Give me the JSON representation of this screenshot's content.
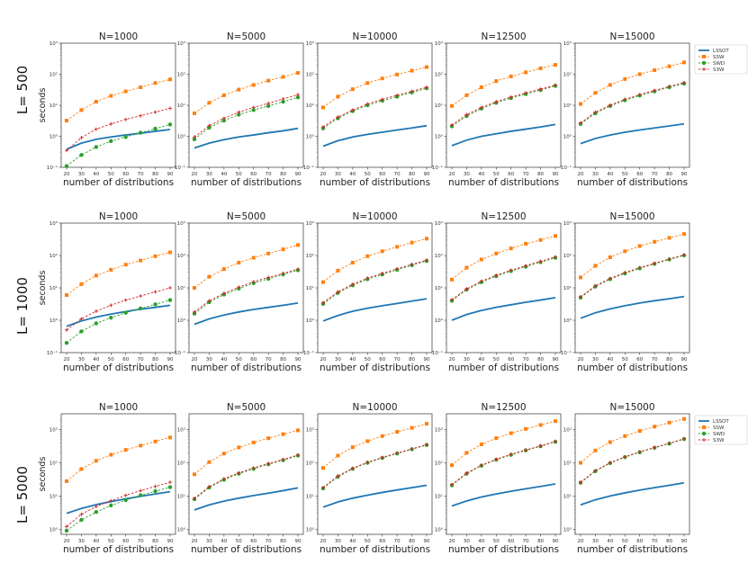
{
  "figure": {
    "ylabel": "seconds",
    "xlabel": "number of distributions",
    "x_tick_labels": [
      "20",
      "30",
      "40",
      "50",
      "60",
      "70",
      "80",
      "90"
    ]
  },
  "colors": {
    "LSSOT": "#1f77b4",
    "SSW": "#ff7f0e",
    "SWD": "#2ca02c",
    "S3W": "#d62728"
  },
  "chart_data": [
    {
      "type": "line",
      "row_label": "L= 500",
      "legend": [
        "LSSOT",
        "SSW",
        "SWD",
        "S3W"
      ],
      "ylim": [
        0.1,
        1000
      ],
      "ytick_labels": [
        "10⁻¹",
        "10⁰",
        "10¹",
        "10²",
        "10³"
      ],
      "x": [
        20,
        30,
        40,
        50,
        60,
        70,
        80,
        90
      ],
      "panels": [
        {
          "title": "N=1000",
          "series": [
            {
              "name": "LSSOT",
              "values": [
                0.38,
                0.6,
                0.8,
                0.95,
                1.1,
                1.25,
                1.45,
                1.65
              ]
            },
            {
              "name": "SSW",
              "values": [
                3.2,
                7,
                13,
                20,
                28,
                38,
                52,
                68
              ]
            },
            {
              "name": "SWD",
              "values": [
                0.11,
                0.25,
                0.45,
                0.7,
                0.95,
                1.3,
                1.75,
                2.4
              ]
            },
            {
              "name": "S3W",
              "values": [
                0.35,
                0.9,
                1.7,
                2.5,
                3.5,
                4.6,
                6,
                8
              ]
            }
          ]
        },
        {
          "title": "N=5000",
          "series": [
            {
              "name": "LSSOT",
              "values": [
                0.42,
                0.6,
                0.78,
                0.95,
                1.1,
                1.3,
                1.5,
                1.8
              ]
            },
            {
              "name": "SSW",
              "values": [
                5.5,
                12,
                21,
                32,
                45,
                62,
                82,
                110
              ]
            },
            {
              "name": "SWD",
              "values": [
                0.8,
                1.9,
                3.2,
                5,
                7,
                9.5,
                13,
                18
              ]
            },
            {
              "name": "S3W",
              "values": [
                0.95,
                2.2,
                3.8,
                6,
                8.5,
                11.5,
                16,
                22
              ]
            }
          ]
        },
        {
          "title": "N=10000",
          "series": [
            {
              "name": "LSSOT",
              "values": [
                0.48,
                0.72,
                0.95,
                1.15,
                1.35,
                1.6,
                1.85,
                2.2
              ]
            },
            {
              "name": "SSW",
              "values": [
                8.5,
                19,
                33,
                52,
                73,
                98,
                130,
                170
              ]
            },
            {
              "name": "SWD",
              "values": [
                1.8,
                3.8,
                6.5,
                10,
                14,
                19,
                26,
                35
              ]
            },
            {
              "name": "S3W",
              "values": [
                2,
                4.2,
                7,
                11,
                15.5,
                21,
                28,
                38
              ]
            }
          ]
        },
        {
          "title": "N=12500",
          "series": [
            {
              "name": "LSSOT",
              "values": [
                0.5,
                0.75,
                1.0,
                1.2,
                1.45,
                1.7,
                2.0,
                2.4
              ]
            },
            {
              "name": "SSW",
              "values": [
                9.5,
                21,
                38,
                60,
                85,
                115,
                155,
                200
              ]
            },
            {
              "name": "SWD",
              "values": [
                2.1,
                4.5,
                7.8,
                12,
                17,
                23,
                31,
                42
              ]
            },
            {
              "name": "S3W",
              "values": [
                2.3,
                5,
                8.5,
                13,
                18.5,
                25,
                33,
                45
              ]
            }
          ]
        },
        {
          "title": "N=15000",
          "series": [
            {
              "name": "LSSOT",
              "values": [
                0.58,
                0.85,
                1.1,
                1.35,
                1.6,
                1.85,
                2.15,
                2.5
              ]
            },
            {
              "name": "SSW",
              "values": [
                11,
                25,
                45,
                70,
                100,
                135,
                180,
                240
              ]
            },
            {
              "name": "SWD",
              "values": [
                2.5,
                5.5,
                9.5,
                14.5,
                20.5,
                28,
                38,
                50
              ]
            },
            {
              "name": "S3W",
              "values": [
                2.7,
                6,
                10,
                15.5,
                22,
                30,
                40,
                54
              ]
            }
          ]
        }
      ]
    },
    {
      "type": "line",
      "row_label": "L= 1000",
      "legend": [
        "LSSOT",
        "SSW",
        "SWD",
        "S3W"
      ],
      "ylim": [
        0.1,
        1000
      ],
      "ytick_labels": [
        "10⁻¹",
        "10⁰",
        "10¹",
        "10²",
        "10³"
      ],
      "x": [
        20,
        30,
        40,
        50,
        60,
        70,
        80,
        90
      ],
      "panels": [
        {
          "title": "N=1000",
          "series": [
            {
              "name": "LSSOT",
              "values": [
                0.65,
                0.95,
                1.25,
                1.55,
                1.85,
                2.2,
                2.5,
                2.9
              ]
            },
            {
              "name": "SSW",
              "values": [
                6,
                13,
                24,
                36,
                52,
                70,
                95,
                125
              ]
            },
            {
              "name": "SWD",
              "values": [
                0.2,
                0.45,
                0.8,
                1.2,
                1.7,
                2.3,
                3.1,
                4.2
              ]
            },
            {
              "name": "S3W",
              "values": [
                0.5,
                1.1,
                1.9,
                2.9,
                4.2,
                5.6,
                7.5,
                10
              ]
            }
          ]
        },
        {
          "title": "N=5000",
          "series": [
            {
              "name": "LSSOT",
              "values": [
                0.75,
                1.1,
                1.45,
                1.8,
                2.15,
                2.5,
                2.9,
                3.4
              ]
            },
            {
              "name": "SSW",
              "values": [
                10,
                22,
                38,
                60,
                85,
                115,
                155,
                210
              ]
            },
            {
              "name": "SWD",
              "values": [
                1.6,
                3.6,
                6.2,
                9.5,
                14,
                19,
                26,
                35
              ]
            },
            {
              "name": "S3W",
              "values": [
                1.8,
                4,
                6.8,
                10.5,
                15.5,
                21,
                28,
                38
              ]
            }
          ]
        },
        {
          "title": "N=10000",
          "series": [
            {
              "name": "LSSOT",
              "values": [
                0.95,
                1.4,
                1.9,
                2.35,
                2.8,
                3.3,
                3.9,
                4.6
              ]
            },
            {
              "name": "SSW",
              "values": [
                15,
                34,
                60,
                95,
                135,
                185,
                250,
                330
              ]
            },
            {
              "name": "SWD",
              "values": [
                3.2,
                7,
                12,
                18.5,
                26,
                36,
                50,
                68
              ]
            },
            {
              "name": "S3W",
              "values": [
                3.5,
                7.5,
                13,
                20,
                28,
                39,
                53,
                72
              ]
            }
          ]
        },
        {
          "title": "N=12500",
          "series": [
            {
              "name": "LSSOT",
              "values": [
                1.0,
                1.5,
                2.0,
                2.5,
                3.0,
                3.6,
                4.2,
                5.0
              ]
            },
            {
              "name": "SSW",
              "values": [
                18,
                42,
                75,
                115,
                165,
                230,
                300,
                400
              ]
            },
            {
              "name": "SWD",
              "values": [
                4,
                8.8,
                15,
                23,
                33,
                45,
                62,
                85
              ]
            },
            {
              "name": "S3W",
              "values": [
                4.3,
                9.3,
                16,
                24.5,
                35,
                48,
                66,
                90
              ]
            }
          ]
        },
        {
          "title": "N=15000",
          "series": [
            {
              "name": "LSSOT",
              "values": [
                1.15,
                1.7,
                2.25,
                2.8,
                3.4,
                4.0,
                4.6,
                5.4
              ]
            },
            {
              "name": "SSW",
              "values": [
                21,
                48,
                88,
                135,
                195,
                265,
                350,
                460
              ]
            },
            {
              "name": "SWD",
              "values": [
                5,
                11,
                18.5,
                28,
                40,
                55,
                75,
                100
              ]
            },
            {
              "name": "S3W",
              "values": [
                5.3,
                11.5,
                19.5,
                29.5,
                42,
                57,
                78,
                105
              ]
            }
          ]
        }
      ]
    },
    {
      "type": "line",
      "row_label": "L= 5000",
      "legend": [
        "LSSOT",
        "SSW",
        "SWD",
        "S3W"
      ],
      "ylim": [
        0.7,
        3000
      ],
      "ytick_labels": [
        "10⁰",
        "10¹",
        "10²",
        "10³"
      ],
      "x": [
        20,
        30,
        40,
        50,
        60,
        70,
        80,
        90
      ],
      "panels": [
        {
          "title": "N=1000",
          "series": [
            {
              "name": "LSSOT",
              "values": [
                3,
                4.2,
                5.5,
                6.8,
                8.2,
                9.8,
                11.5,
                13.5
              ]
            },
            {
              "name": "SSW",
              "values": [
                28,
                65,
                115,
                175,
                245,
                330,
                440,
                580
              ]
            },
            {
              "name": "SWD",
              "values": [
                0.9,
                1.9,
                3.3,
                5.2,
                7.5,
                10.5,
                14,
                18.5
              ]
            },
            {
              "name": "S3W",
              "values": [
                1.2,
                2.8,
                4.8,
                7.2,
                10.5,
                14.5,
                19.5,
                26
              ]
            }
          ]
        },
        {
          "title": "N=5000",
          "series": [
            {
              "name": "LSSOT",
              "values": [
                3.8,
                5.4,
                7,
                8.6,
                10.3,
                12.2,
                14.5,
                17.5
              ]
            },
            {
              "name": "SSW",
              "values": [
                45,
                105,
                190,
                290,
                410,
                550,
                730,
                950
              ]
            },
            {
              "name": "SWD",
              "values": [
                8,
                18,
                31,
                47,
                66,
                90,
                120,
                165
              ]
            },
            {
              "name": "S3W",
              "values": [
                8.5,
                19,
                33,
                50,
                70,
                95,
                126,
                172
              ]
            }
          ]
        },
        {
          "title": "N=10000",
          "series": [
            {
              "name": "LSSOT",
              "values": [
                4.6,
                6.6,
                8.6,
                10.6,
                12.8,
                15.2,
                17.8,
                21
              ]
            },
            {
              "name": "SSW",
              "values": [
                70,
                165,
                295,
                450,
                640,
                860,
                1130,
                1500
              ]
            },
            {
              "name": "SWD",
              "values": [
                17,
                38,
                66,
                100,
                140,
                190,
                255,
                345
              ]
            },
            {
              "name": "S3W",
              "values": [
                18,
                40,
                69,
                104,
                145,
                197,
                263,
                355
              ]
            }
          ]
        },
        {
          "title": "N=12500",
          "series": [
            {
              "name": "LSSOT",
              "values": [
                5,
                7.1,
                9.3,
                11.5,
                13.9,
                16.5,
                19.4,
                23
              ]
            },
            {
              "name": "SSW",
              "values": [
                85,
                200,
                360,
                550,
                780,
                1050,
                1380,
                1800
              ]
            },
            {
              "name": "SWD",
              "values": [
                21,
                47,
                82,
                124,
                174,
                236,
                315,
                430
              ]
            },
            {
              "name": "S3W",
              "values": [
                22,
                49,
                85,
                128,
                180,
                244,
                325,
                442
              ]
            }
          ]
        },
        {
          "title": "N=15000",
          "series": [
            {
              "name": "LSSOT",
              "values": [
                5.4,
                7.7,
                10,
                12.4,
                15,
                17.8,
                21,
                25
              ]
            },
            {
              "name": "SSW",
              "values": [
                100,
                235,
                420,
                640,
                910,
                1230,
                1620,
                2100
              ]
            },
            {
              "name": "SWD",
              "values": [
                25,
                56,
                98,
                148,
                208,
                283,
                378,
                520
              ]
            },
            {
              "name": "S3W",
              "values": [
                26,
                58,
                101,
                152,
                214,
                291,
                388,
                532
              ]
            }
          ]
        }
      ]
    }
  ]
}
